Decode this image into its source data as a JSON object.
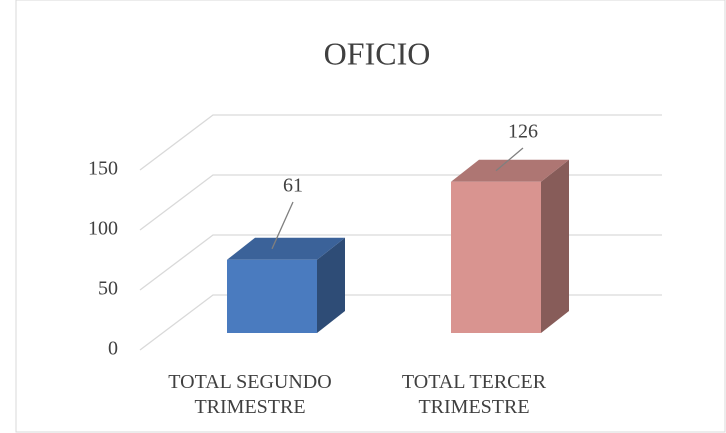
{
  "chart_data": {
    "type": "bar3d",
    "title": "OFICIO",
    "categories": [
      "TOTAL SEGUNDO TRIMESTRE",
      "TOTAL TERCER TRIMESTRE"
    ],
    "values": [
      61,
      126
    ],
    "colors": [
      "#4a7bbf",
      "#d99490"
    ],
    "ylim": [
      0,
      150
    ],
    "yticks": [
      0,
      50,
      100,
      150
    ],
    "grid": true
  }
}
